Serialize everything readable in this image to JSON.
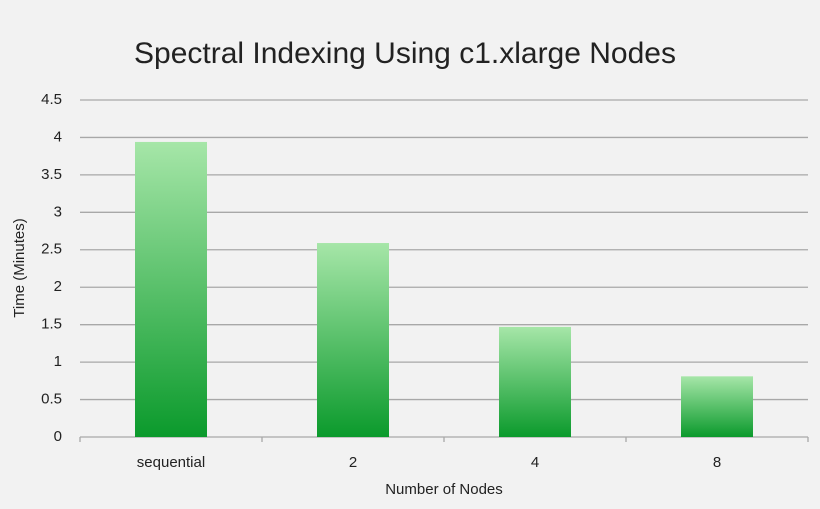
{
  "chart_data": {
    "type": "bar",
    "title": "Spectral Indexing Using c1.xlarge Nodes",
    "x_label": "Number of Nodes",
    "y_label": "Time (Minutes)",
    "categories": [
      "sequential",
      "2",
      "4",
      "8"
    ],
    "values": [
      3.94,
      2.59,
      1.47,
      0.81
    ],
    "color": "#0b9a2c",
    "ylim": [
      0,
      4.5
    ],
    "yticks": [
      0,
      0.5,
      1,
      1.5,
      2,
      2.5,
      3,
      3.5,
      4,
      4.5
    ],
    "grid": true
  }
}
